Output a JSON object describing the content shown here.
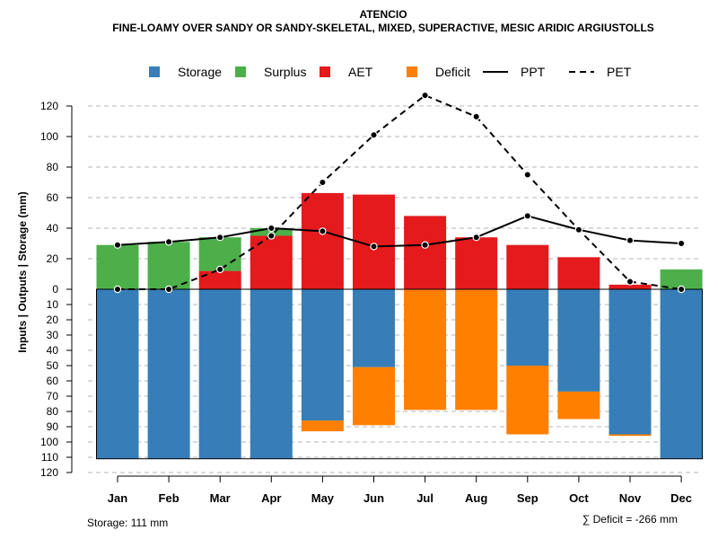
{
  "chart_data": {
    "type": "bar",
    "title": "ATENCIO",
    "subtitle": "FINE-LOAMY OVER SANDY OR SANDY-SKELETAL, MIXED, SUPERACTIVE, MESIC ARIDIC ARGIUSTOLLS",
    "ylabel": "Inputs | Outputs | Storage    (mm)",
    "categories": [
      "Jan",
      "Feb",
      "Mar",
      "Apr",
      "May",
      "Jun",
      "Jul",
      "Aug",
      "Sep",
      "Oct",
      "Nov",
      "Dec"
    ],
    "ylim": [
      -120,
      120
    ],
    "yticks_positive": [
      0,
      20,
      40,
      60,
      80,
      100,
      120
    ],
    "yticks_negative": [
      10,
      20,
      30,
      40,
      50,
      60,
      70,
      80,
      90,
      100,
      110,
      120
    ],
    "grid": true,
    "legend_position": "top",
    "legend": [
      {
        "key": "storage",
        "label": "Storage",
        "kind": "box",
        "color": "#377EB8"
      },
      {
        "key": "surplus",
        "label": "Surplus",
        "kind": "box",
        "color": "#4DAF4A"
      },
      {
        "key": "aet",
        "label": "AET",
        "kind": "box",
        "color": "#E41A1C"
      },
      {
        "key": "deficit",
        "label": "Deficit",
        "kind": "box",
        "color": "#FF7F00"
      },
      {
        "key": "ppt",
        "label": "PPT",
        "kind": "solid",
        "color": "#000000"
      },
      {
        "key": "pet",
        "label": "PET",
        "kind": "dashed",
        "color": "#000000"
      }
    ],
    "series": [
      {
        "name": "AET",
        "values": [
          0,
          0,
          12,
          35,
          63,
          62,
          48,
          34,
          29,
          21,
          3,
          0
        ]
      },
      {
        "name": "Surplus",
        "values": [
          29,
          31,
          22,
          5,
          0,
          0,
          0,
          0,
          0,
          0,
          0,
          13
        ]
      },
      {
        "name": "Storage",
        "values": [
          111,
          111,
          111,
          111,
          86,
          51,
          0,
          0,
          50,
          67,
          95,
          111
        ]
      },
      {
        "name": "Deficit",
        "values": [
          0,
          0,
          0,
          0,
          7,
          38,
          79,
          79,
          45,
          18,
          1,
          0
        ]
      },
      {
        "name": "PPT",
        "values": [
          29,
          31,
          34,
          40,
          38,
          28,
          29,
          34,
          48,
          39,
          32,
          30
        ]
      },
      {
        "name": "PET",
        "values": [
          0,
          0,
          13,
          35,
          70,
          101,
          127,
          113,
          75,
          39,
          5,
          0
        ]
      }
    ],
    "storage_capacity": 111
  },
  "footer": {
    "storage_note": "Storage: 111 mm",
    "deficit_note": "∑ Deficit = -266 mm"
  }
}
